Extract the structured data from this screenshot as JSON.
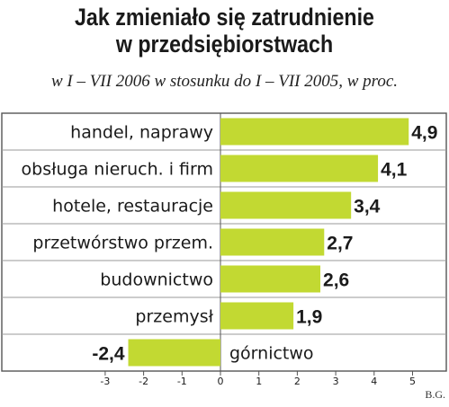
{
  "title_line1": "Jak zmieniało się zatrudnienie",
  "title_line2": "w przedsiębiorstwach",
  "subtitle": "w I – VII 2006 w stosunku do I – VII 2005, w proc.",
  "credit": "B.G.",
  "colors": {
    "bar": "#c2d932",
    "text": "#1a1a1a",
    "border": "#555555",
    "grid": "#9a9a9a"
  },
  "chart_data": {
    "type": "bar",
    "orientation": "horizontal",
    "categories": [
      "handel, naprawy",
      "obsługa nieruch. i firm",
      "hotele, restauracje",
      "przetwórstwo przem.",
      "budownictwo",
      "przemysł",
      "górnictwo"
    ],
    "values": [
      4.9,
      4.1,
      3.4,
      2.7,
      2.6,
      1.9,
      -2.4
    ],
    "value_labels": [
      "4,9",
      "4,1",
      "3,4",
      "2,7",
      "2,6",
      "1,9",
      "-2,4"
    ],
    "xlim": [
      -3,
      5
    ],
    "xticks": [
      -3,
      -2,
      -1,
      0,
      1,
      2,
      3,
      4,
      5
    ],
    "xtick_labels": [
      "-3",
      "-2",
      "-1",
      "0",
      "1",
      "2",
      "3",
      "4",
      "5"
    ],
    "grid": false
  }
}
